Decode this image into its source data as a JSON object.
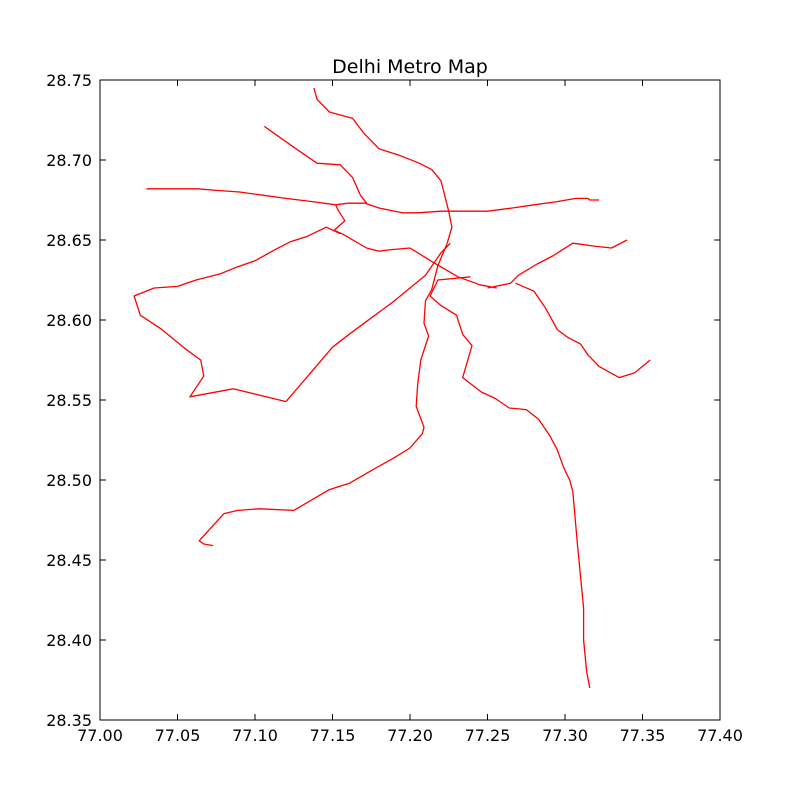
{
  "chart_data": {
    "type": "line",
    "title": "Delhi Metro Map",
    "xlabel": "",
    "ylabel": "",
    "xlim": [
      77.0,
      77.4
    ],
    "ylim": [
      28.35,
      28.75
    ],
    "xticks": [
      "77.00",
      "77.05",
      "77.10",
      "77.15",
      "77.20",
      "77.25",
      "77.30",
      "77.35",
      "77.40"
    ],
    "yticks": [
      "28.35",
      "28.40",
      "28.45",
      "28.50",
      "28.55",
      "28.60",
      "28.65",
      "28.70",
      "28.75"
    ],
    "grid": false,
    "line_color": "#ff0000",
    "series": [
      {
        "x": [
          77.138,
          77.14,
          77.148,
          77.163,
          77.17,
          77.18,
          77.193,
          77.206,
          77.214,
          77.22,
          77.225,
          77.227,
          77.224,
          77.218,
          77.214,
          77.21,
          77.209,
          77.212,
          77.207,
          77.205,
          77.204,
          77.209,
          77.208,
          77.2,
          77.19,
          77.177,
          77.161,
          77.148,
          77.125,
          77.103,
          77.089,
          77.08,
          77.064,
          77.067,
          77.073
        ],
        "y": [
          28.745,
          28.738,
          28.73,
          28.726,
          28.717,
          28.707,
          28.703,
          28.698,
          28.694,
          28.687,
          28.668,
          28.658,
          28.648,
          28.634,
          28.619,
          28.612,
          28.598,
          28.59,
          28.575,
          28.56,
          28.546,
          28.533,
          28.529,
          28.52,
          28.514,
          28.507,
          28.498,
          28.494,
          28.481,
          28.482,
          28.481,
          28.479,
          28.462,
          28.46,
          28.459
        ]
      },
      {
        "x": [
          77.03,
          77.04,
          77.043,
          77.055,
          77.063,
          77.075,
          77.09,
          77.105,
          77.12,
          77.137,
          77.152,
          77.16,
          77.171,
          77.18,
          77.195,
          77.205,
          77.22,
          77.237,
          77.25,
          77.266,
          77.28,
          77.295,
          77.307,
          77.315,
          77.316,
          77.322
        ],
        "y": [
          28.682,
          28.682,
          28.682,
          28.682,
          28.682,
          28.681,
          28.68,
          28.678,
          28.676,
          28.674,
          28.672,
          28.673,
          28.673,
          28.67,
          28.667,
          28.667,
          28.668,
          28.668,
          28.668,
          28.67,
          28.672,
          28.674,
          28.676,
          28.676,
          28.675,
          28.675
        ]
      },
      {
        "x": [
          77.106,
          77.125,
          77.14,
          77.155,
          77.163,
          77.168,
          77.172
        ],
        "y": [
          28.721,
          28.708,
          28.698,
          28.697,
          28.689,
          28.678,
          28.673
        ]
      },
      {
        "x": [
          77.152,
          77.154,
          77.158,
          77.151,
          77.156,
          77.172,
          77.18,
          77.188,
          77.2,
          77.215,
          77.231,
          77.245,
          77.256
        ],
        "y": [
          28.672,
          28.668,
          28.662,
          28.656,
          28.654,
          28.645,
          28.643,
          28.644,
          28.645,
          28.636,
          28.627,
          28.622,
          28.62
        ]
      },
      {
        "x": [
          77.155,
          77.146,
          77.133,
          77.123,
          77.113,
          77.1,
          77.088,
          77.078,
          77.062,
          77.05,
          77.035,
          77.022,
          77.026,
          77.04,
          77.055,
          77.065,
          77.067,
          77.058,
          77.086,
          77.12
        ],
        "y": [
          28.654,
          28.658,
          28.652,
          28.649,
          28.644,
          28.637,
          28.633,
          28.629,
          28.625,
          28.621,
          28.62,
          28.615,
          28.603,
          28.594,
          28.582,
          28.575,
          28.565,
          28.552,
          28.557,
          28.549
        ]
      },
      {
        "x": [
          77.12,
          77.135,
          77.15,
          77.162,
          77.176,
          77.19,
          77.21,
          77.22,
          77.226
        ],
        "y": [
          28.549,
          28.566,
          28.583,
          28.592,
          28.602,
          28.612,
          28.628,
          28.642,
          28.648
        ]
      },
      {
        "x": [
          77.239,
          77.218,
          77.213,
          77.22,
          77.23,
          77.234,
          77.24,
          77.234,
          77.246,
          77.255,
          77.264,
          77.275,
          77.283,
          77.29,
          77.295,
          77.299,
          77.303,
          77.305,
          77.308,
          77.312,
          77.312,
          77.314,
          77.316
        ],
        "y": [
          28.627,
          28.625,
          28.615,
          28.609,
          28.603,
          28.591,
          28.584,
          28.564,
          28.555,
          28.551,
          28.545,
          28.544,
          28.538,
          28.528,
          28.519,
          28.508,
          28.5,
          28.493,
          28.46,
          28.42,
          28.4,
          28.38,
          28.37
        ]
      },
      {
        "x": [
          77.268,
          77.28,
          77.287,
          77.29,
          77.295,
          77.302,
          77.31,
          77.315,
          77.322,
          77.335,
          77.345,
          77.355
        ],
        "y": [
          28.623,
          28.618,
          28.608,
          28.603,
          28.594,
          28.589,
          28.585,
          28.578,
          28.571,
          28.564,
          28.567,
          28.575
        ]
      },
      {
        "x": [
          77.25,
          77.265,
          77.27,
          77.282,
          77.292,
          77.305,
          77.32,
          77.33,
          77.34
        ],
        "y": [
          28.62,
          28.623,
          28.628,
          28.635,
          28.64,
          28.648,
          28.646,
          28.645,
          28.65
        ]
      }
    ]
  }
}
